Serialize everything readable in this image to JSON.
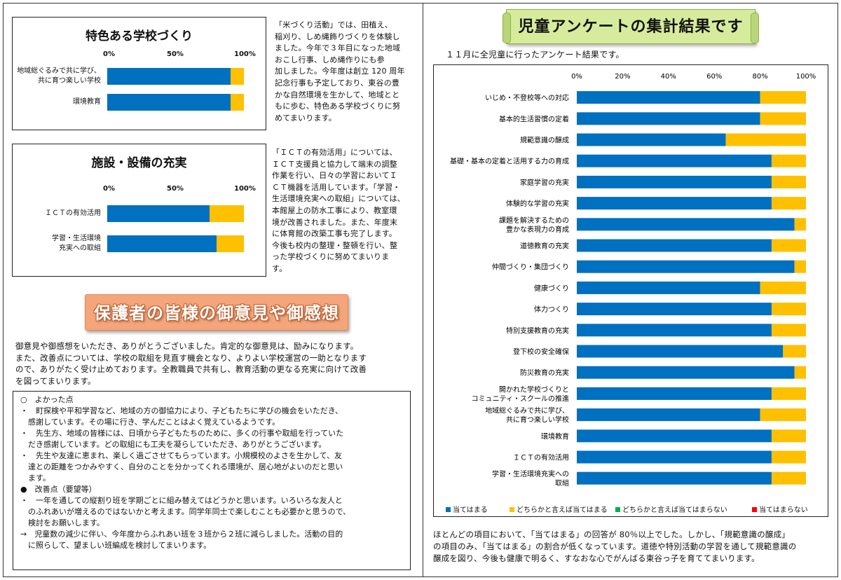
{
  "colors": {
    "blue": "#0070c0",
    "yellow": "#ffc000",
    "green": "#00b050",
    "red": "#ff0000"
  },
  "left": {
    "box1": {
      "title": "特色ある学校づくり",
      "ticks": [
        "0%",
        "50%",
        "100%"
      ],
      "rows": [
        {
          "label_lines": [
            "地域総ぐるみで共に学び、",
            "共に育つ楽しい学校"
          ],
          "blue": 90,
          "yellow": 10
        },
        {
          "label_lines": [
            "環境教育"
          ],
          "blue": 90,
          "yellow": 10
        }
      ]
    },
    "para1": [
      "「米づくり活動」では、田植え、",
      "稲刈り、しめ縄飾りづくりを体験し",
      "ました。今年で３年目になった地域",
      "おこし行事、しめ縄作りにも参",
      "加しました。今年度は創立 120 周年",
      "記念行事も予定しており、東谷の豊",
      "かな自然環境を生かして、地域とと",
      "もに歩む、特色ある学校づくりに努",
      "めてまいります。"
    ],
    "box2": {
      "title": "施設・設備の充実",
      "ticks": [
        "0%",
        "50%",
        "100%"
      ],
      "rows": [
        {
          "label_lines": [
            "ＩＣＴの有効活用"
          ],
          "blue": 75,
          "yellow": 25
        },
        {
          "label_lines": [
            "学習・生活環境",
            "充実への取組"
          ],
          "blue": 80,
          "yellow": 20
        }
      ]
    },
    "para2": [
      "「ＩＣＴの有効活用」については、",
      "ＩＣＴ支援員と協力して端末の調整",
      "作業を行い、日々の学習においてＩ",
      "ＣＴ機器を活用しています。「学習・",
      "生活環境充実への取組」については、",
      "本館屋上の防水工事により、教室環",
      "境が改善されました。また、年度末",
      "に体育館の改築工事も完了します。",
      "今後も校内の整理・整頓を行い、整",
      "った学校づくりに努めてまいりま",
      "す。"
    ],
    "banner": "保護者の皆様の御意見や御感想",
    "intro": [
      "御意見や御感想をいただき、ありがとうございました。肯定的な御意見は、励みになります。",
      "また、改善点については、学校の取組を見直す機会となり、よりよい学校運営の一助となります",
      "ので、ありがたく受け止めております。全教職員で共有し、教育活動の更なる充実に向けて改善",
      "を図ってまいります。"
    ],
    "feedback": {
      "good_heading": "○　よかった点",
      "good_lines": [
        "・　町探検や平和学習など、地域の方の御協力により、子どもたちに学びの機会をいただき、",
        "　感謝しています。その場に行き、学んだことはよく覚えているようです。",
        "・　先生方、地域の皆様には、日頃から子どもたちのために、多くの行事や取組を行っていた",
        "　だき感謝しています。どの取組にも工夫を凝らしていただき、ありがとうございます。",
        "・　先生や友達に恵まれ、楽しく過ごさせてもらっています。小規模校のよさを生かして、友",
        "　達との距離をつかみやすく、自分のことを分かってくれる環境が、居心地がよいのだと思い",
        "　ます。"
      ],
      "improve_heading": "●　改善点（要望等）",
      "improve_lines": [
        "・　一年を通しての縦割り班を学期ごとに組み替えてはどうかと思います。いろいろな友人と",
        "　のふれあいが増えるのではないかと考えます。同学年同士で楽しむことも必要かと思うので、",
        "　検討をお願いします。",
        "→　児童数の減少に伴い、今年度からふれあい班を３班から２班に減らしました。活動の目的",
        "　に照らして、望ましい班編成を検討してまいります。"
      ]
    }
  },
  "right": {
    "title": "児童アンケートの集計結果です",
    "subtitle": "１１月に全児童に行ったアンケート結果です。",
    "chart_data": {
      "type": "bar",
      "orientation": "horizontal",
      "stacked": true,
      "title": "",
      "xlim": [
        0,
        100
      ],
      "xticks": [
        "0%",
        "20%",
        "40%",
        "60%",
        "80%",
        "100%"
      ],
      "categories": [
        [
          "いじめ・不登校等への対応"
        ],
        [
          "基本的生活習慣の定着"
        ],
        [
          "規範意識の醸成"
        ],
        [
          "基礎・基本の定着と活用する力の育成"
        ],
        [
          "家庭学習の充実"
        ],
        [
          "体験的な学習の充実"
        ],
        [
          "課題を解決するための",
          "豊かな表現力の育成"
        ],
        [
          "道徳教育の充実"
        ],
        [
          "仲間づくり・集団づくり"
        ],
        [
          "健康づくり"
        ],
        [
          "体力つくり"
        ],
        [
          "特別支援教育の充実"
        ],
        [
          "登下校の安全確保"
        ],
        [
          "防災教育の充実"
        ],
        [
          "開かれた学校づくりと",
          "コミュニティ・スクールの推進"
        ],
        [
          "地域総ぐるみで共に学び、",
          "共に育つ楽しい学校"
        ],
        [
          "環境教育"
        ],
        [
          "ＩＣＴの有効活用"
        ],
        [
          "学習・生活環境充実への",
          "取組"
        ]
      ],
      "series": [
        {
          "name": "当てはまる",
          "values": [
            80,
            80,
            65,
            85,
            85,
            85,
            95,
            85,
            95,
            80,
            85,
            85,
            90,
            95,
            85,
            80,
            85,
            85,
            85
          ]
        },
        {
          "name": "どちらかと言えば当てはまる",
          "values": [
            20,
            20,
            35,
            15,
            15,
            15,
            5,
            15,
            5,
            20,
            15,
            15,
            10,
            5,
            15,
            20,
            15,
            15,
            15
          ]
        },
        {
          "name": "どちらかと言えば当てはまらない",
          "values": [
            0,
            0,
            0,
            0,
            0,
            0,
            0,
            0,
            0,
            0,
            0,
            0,
            0,
            0,
            0,
            0,
            0,
            0,
            0
          ]
        },
        {
          "name": "当てはまらない",
          "values": [
            0,
            0,
            0,
            0,
            0,
            0,
            0,
            0,
            0,
            0,
            0,
            0,
            0,
            0,
            0,
            0,
            0,
            0,
            0
          ]
        }
      ]
    },
    "summary": [
      "ほとんどの項目において、「当てはまる」の回答が 80％以上でした。しかし、「規範意識の醸成」",
      "の項目のみ、「当てはまる」の割合が低くなっています。道徳や特別活動の学習を通して規範意識の",
      "醸成を図り、今後も健康で明るく、すなおな心でがんばる東谷っ子を育ててまいります。"
    ]
  }
}
